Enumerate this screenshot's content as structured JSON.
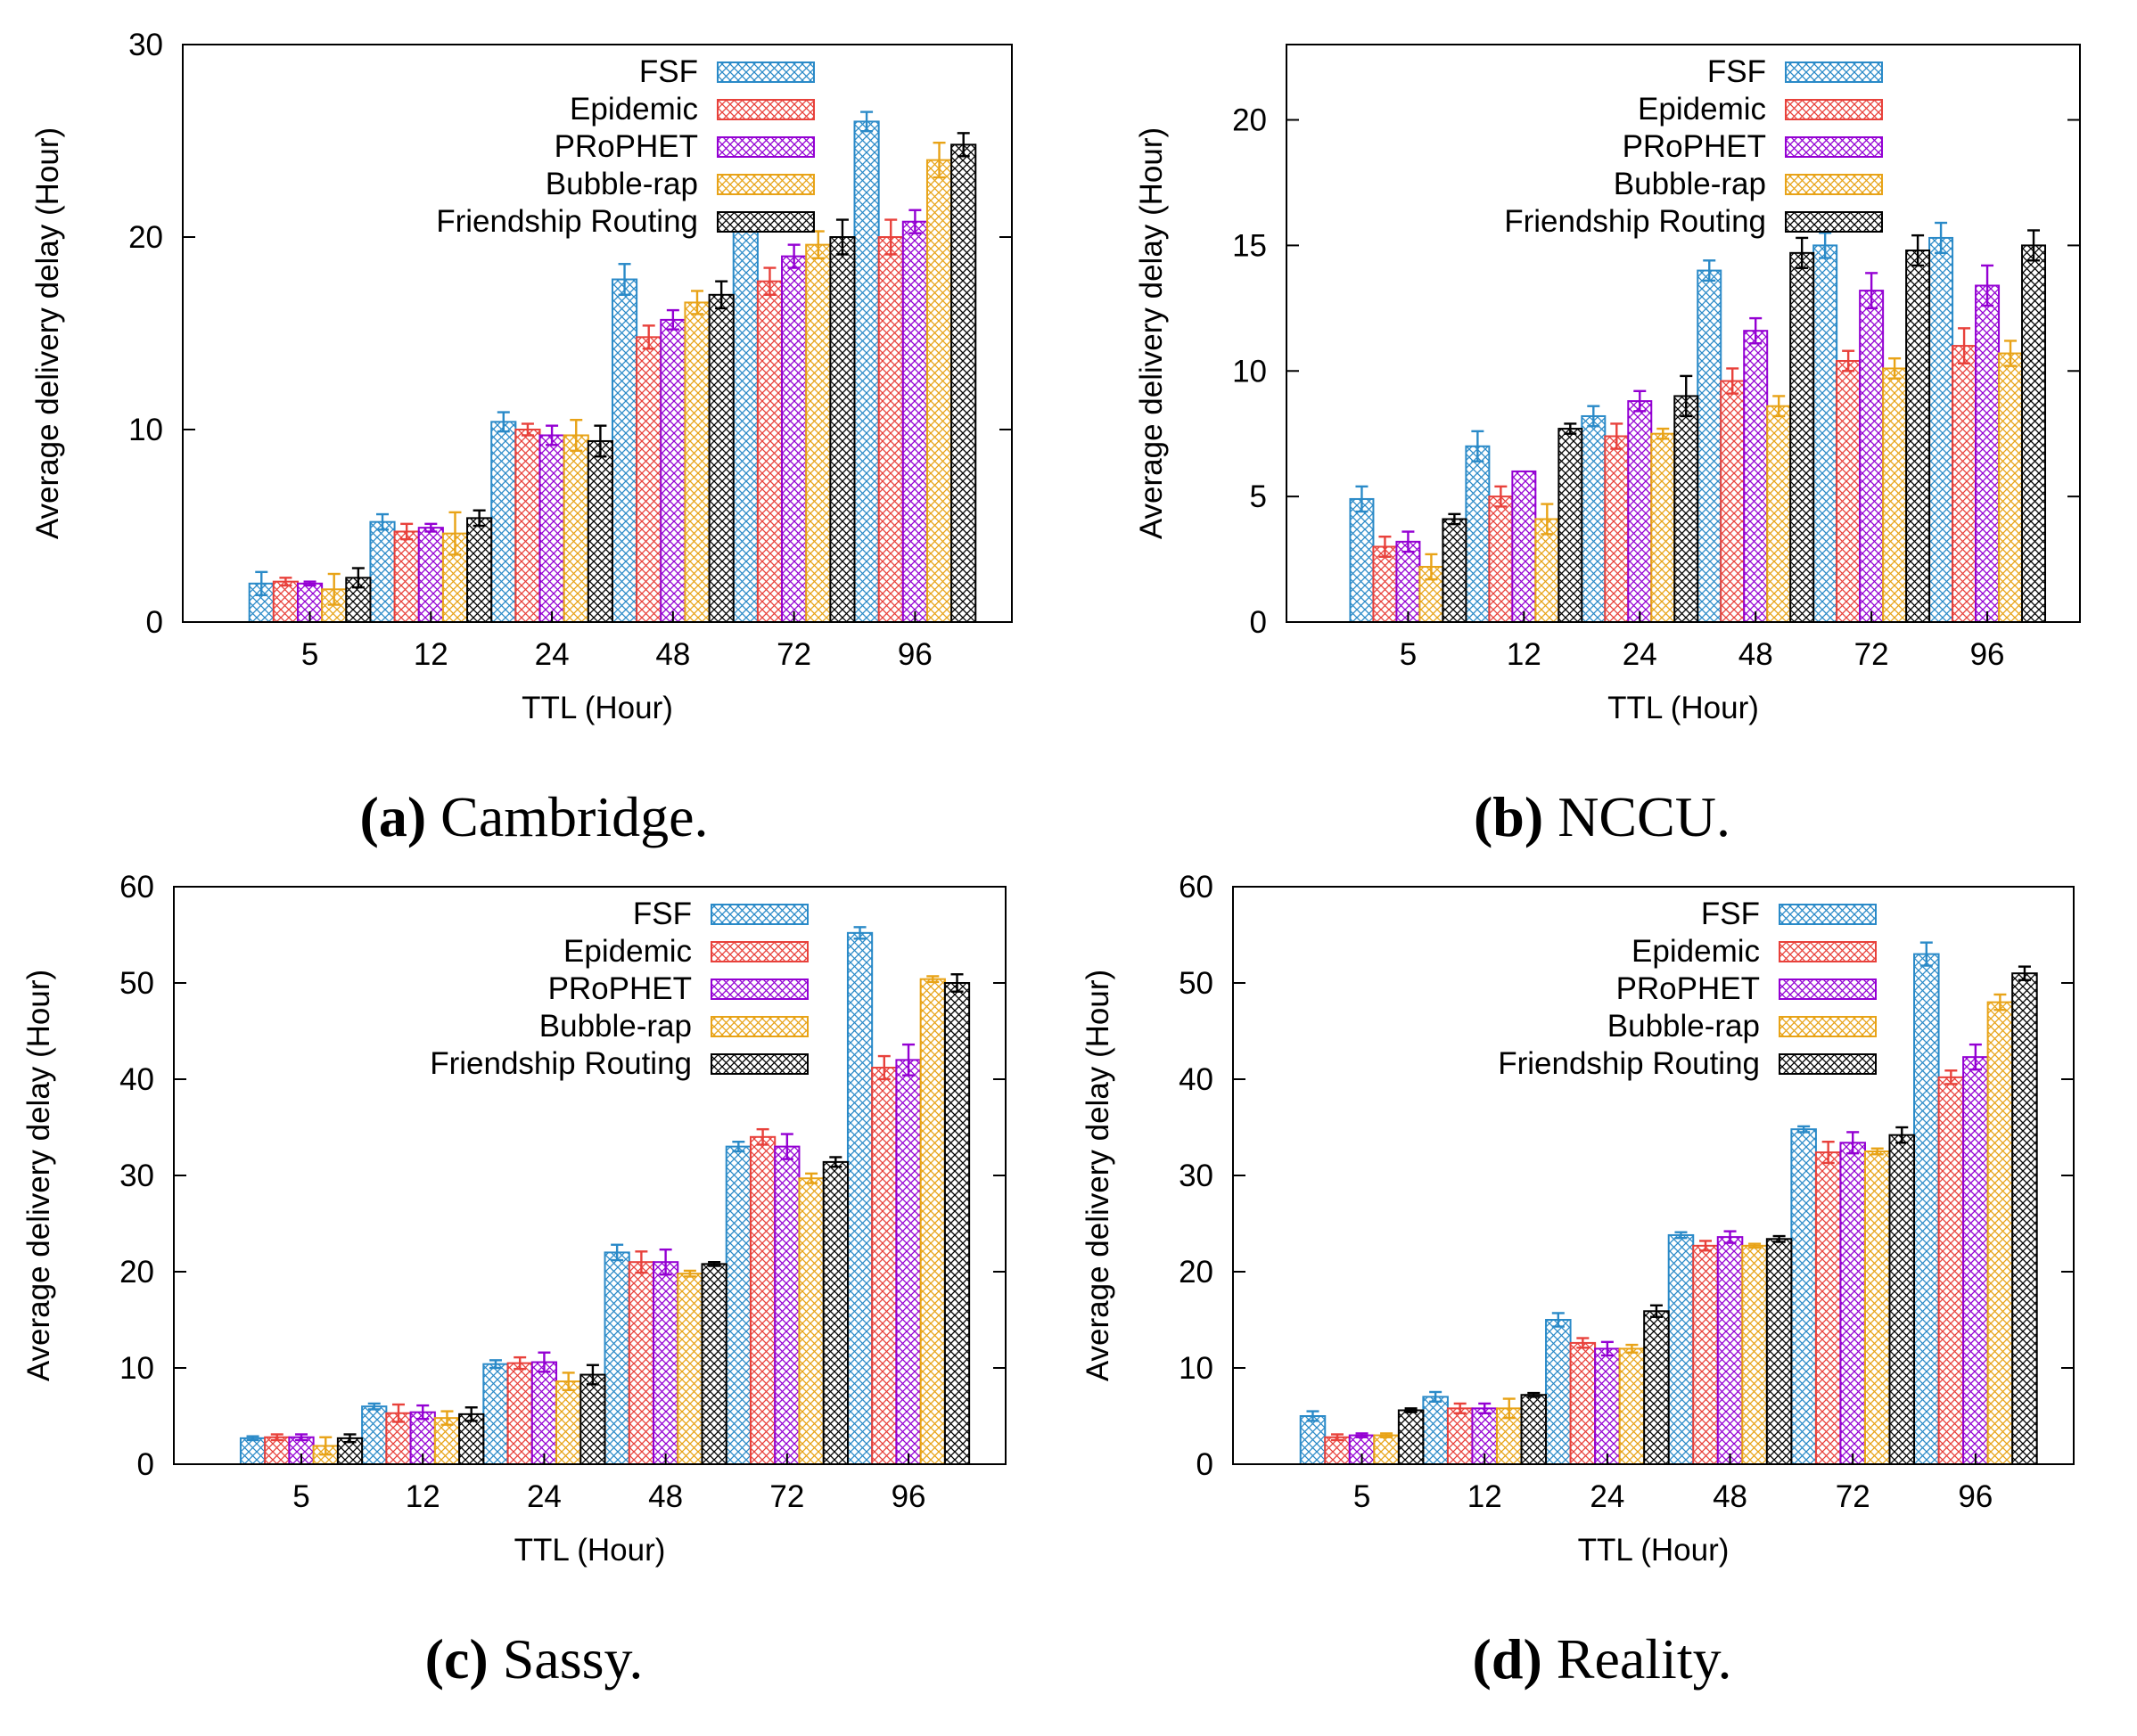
{
  "series_styles": [
    {
      "name": "FSF",
      "color": "#2a8ac8"
    },
    {
      "name": "Epidemic",
      "color": "#e8413b"
    },
    {
      "name": "PRoPHET",
      "color": "#9400d3"
    },
    {
      "name": "Bubble-rap",
      "color": "#e8a317"
    },
    {
      "name": "Friendship Routing",
      "color": "#000000"
    }
  ],
  "chart_data": [
    {
      "type": "bar",
      "caption_letter": "(a)",
      "caption_text": " Cambridge.",
      "xlabel": "TTL (Hour)",
      "ylabel": "Average delivery delay (Hour)",
      "categories": [
        "5",
        "12",
        "24",
        "48",
        "72",
        "96"
      ],
      "ylim": [
        0,
        30
      ],
      "yticks": [
        0,
        10,
        20,
        30
      ],
      "series": [
        {
          "name": "FSF",
          "values": [
            2.0,
            5.2,
            10.4,
            17.8,
            20.8,
            26.0
          ],
          "errors": [
            0.6,
            0.4,
            0.5,
            0.8,
            0.2,
            0.5
          ]
        },
        {
          "name": "Epidemic",
          "values": [
            2.1,
            4.7,
            10.0,
            14.8,
            17.7,
            20.0
          ],
          "errors": [
            0.2,
            0.4,
            0.3,
            0.6,
            0.7,
            0.9
          ]
        },
        {
          "name": "PRoPHET",
          "values": [
            2.0,
            4.9,
            9.7,
            15.7,
            19.0,
            20.8
          ],
          "errors": [
            0.1,
            0.2,
            0.5,
            0.5,
            0.6,
            0.6
          ]
        },
        {
          "name": "Bubble-rap",
          "values": [
            1.7,
            4.6,
            9.7,
            16.6,
            19.6,
            24.0
          ],
          "errors": [
            0.8,
            1.1,
            0.8,
            0.6,
            0.7,
            0.9
          ]
        },
        {
          "name": "Friendship Routing",
          "values": [
            2.3,
            5.4,
            9.4,
            17.0,
            20.0,
            24.8
          ],
          "errors": [
            0.5,
            0.4,
            0.8,
            0.7,
            0.9,
            0.6
          ]
        }
      ]
    },
    {
      "type": "bar",
      "caption_letter": "(b)",
      "caption_text": " NCCU.",
      "xlabel": "TTL (Hour)",
      "ylabel": "Average delivery delay (Hour)",
      "categories": [
        "5",
        "12",
        "24",
        "48",
        "72",
        "96"
      ],
      "ylim": [
        0,
        23
      ],
      "yticks": [
        0,
        5,
        10,
        15,
        20
      ],
      "series": [
        {
          "name": "FSF",
          "values": [
            4.9,
            7.0,
            8.2,
            14.0,
            15.0,
            15.3
          ],
          "errors": [
            0.5,
            0.6,
            0.4,
            0.4,
            0.5,
            0.6
          ]
        },
        {
          "name": "Epidemic",
          "values": [
            3.0,
            5.0,
            7.4,
            9.6,
            10.4,
            11.0
          ],
          "errors": [
            0.4,
            0.4,
            0.5,
            0.5,
            0.4,
            0.7
          ]
        },
        {
          "name": "PRoPHET",
          "values": [
            3.2,
            6.0,
            8.8,
            11.6,
            13.2,
            13.4
          ],
          "errors": [
            0.4,
            0.0,
            0.4,
            0.5,
            0.7,
            0.8
          ]
        },
        {
          "name": "Bubble-rap",
          "values": [
            2.2,
            4.1,
            7.5,
            8.6,
            10.1,
            10.7
          ],
          "errors": [
            0.5,
            0.6,
            0.2,
            0.4,
            0.4,
            0.5
          ]
        },
        {
          "name": "Friendship Routing",
          "values": [
            4.1,
            7.7,
            9.0,
            14.7,
            14.8,
            15.0
          ],
          "errors": [
            0.2,
            0.2,
            0.8,
            0.6,
            0.6,
            0.6
          ]
        }
      ]
    },
    {
      "type": "bar",
      "caption_letter": "(c)",
      "caption_text": " Sassy.",
      "xlabel": "TTL (Hour)",
      "ylabel": "Average delivery delay (Hour)",
      "categories": [
        "5",
        "12",
        "24",
        "48",
        "72",
        "96"
      ],
      "ylim": [
        0,
        60
      ],
      "yticks": [
        0,
        10,
        20,
        30,
        40,
        50,
        60
      ],
      "series": [
        {
          "name": "FSF",
          "values": [
            2.7,
            6.0,
            10.4,
            22.0,
            33.0,
            55.2
          ],
          "errors": [
            0.2,
            0.3,
            0.4,
            0.8,
            0.5,
            0.6
          ]
        },
        {
          "name": "Epidemic",
          "values": [
            2.8,
            5.3,
            10.5,
            21.0,
            34.0,
            41.2
          ],
          "errors": [
            0.3,
            0.9,
            0.6,
            1.1,
            0.8,
            1.2
          ]
        },
        {
          "name": "PRoPHET",
          "values": [
            2.8,
            5.4,
            10.6,
            21.0,
            33.0,
            42.0
          ],
          "errors": [
            0.3,
            0.7,
            1.0,
            1.3,
            1.3,
            1.6
          ]
        },
        {
          "name": "Bubble-rap",
          "values": [
            1.9,
            4.8,
            8.6,
            19.8,
            29.7,
            50.4
          ],
          "errors": [
            0.9,
            0.7,
            0.9,
            0.3,
            0.5,
            0.3
          ]
        },
        {
          "name": "Friendship Routing",
          "values": [
            2.7,
            5.2,
            9.3,
            20.8,
            31.4,
            50.0
          ],
          "errors": [
            0.4,
            0.7,
            1.0,
            0.2,
            0.5,
            0.9
          ]
        }
      ]
    },
    {
      "type": "bar",
      "caption_letter": "(d)",
      "caption_text": " Reality.",
      "xlabel": "TTL (Hour)",
      "ylabel": "Average delivery delay (Hour)",
      "categories": [
        "5",
        "12",
        "24",
        "48",
        "72",
        "96"
      ],
      "ylim": [
        0,
        60
      ],
      "yticks": [
        0,
        10,
        20,
        30,
        40,
        50,
        60
      ],
      "series": [
        {
          "name": "FSF",
          "values": [
            5.0,
            7.0,
            15.0,
            23.8,
            34.8,
            53.0
          ],
          "errors": [
            0.5,
            0.5,
            0.7,
            0.3,
            0.3,
            1.2
          ]
        },
        {
          "name": "Epidemic",
          "values": [
            2.8,
            5.8,
            12.6,
            22.7,
            32.4,
            40.2
          ],
          "errors": [
            0.3,
            0.5,
            0.5,
            0.5,
            1.1,
            0.7
          ]
        },
        {
          "name": "PRoPHET",
          "values": [
            3.0,
            5.8,
            12.0,
            23.6,
            33.4,
            42.3
          ],
          "errors": [
            0.2,
            0.5,
            0.7,
            0.6,
            1.1,
            1.3
          ]
        },
        {
          "name": "Bubble-rap",
          "values": [
            3.0,
            5.8,
            12.0,
            22.7,
            32.5,
            48.0
          ],
          "errors": [
            0.2,
            1.0,
            0.4,
            0.2,
            0.3,
            0.8
          ]
        },
        {
          "name": "Friendship Routing",
          "values": [
            5.6,
            7.2,
            15.9,
            23.4,
            34.2,
            51.0
          ],
          "errors": [
            0.2,
            0.2,
            0.6,
            0.3,
            0.8,
            0.7
          ]
        }
      ]
    }
  ]
}
